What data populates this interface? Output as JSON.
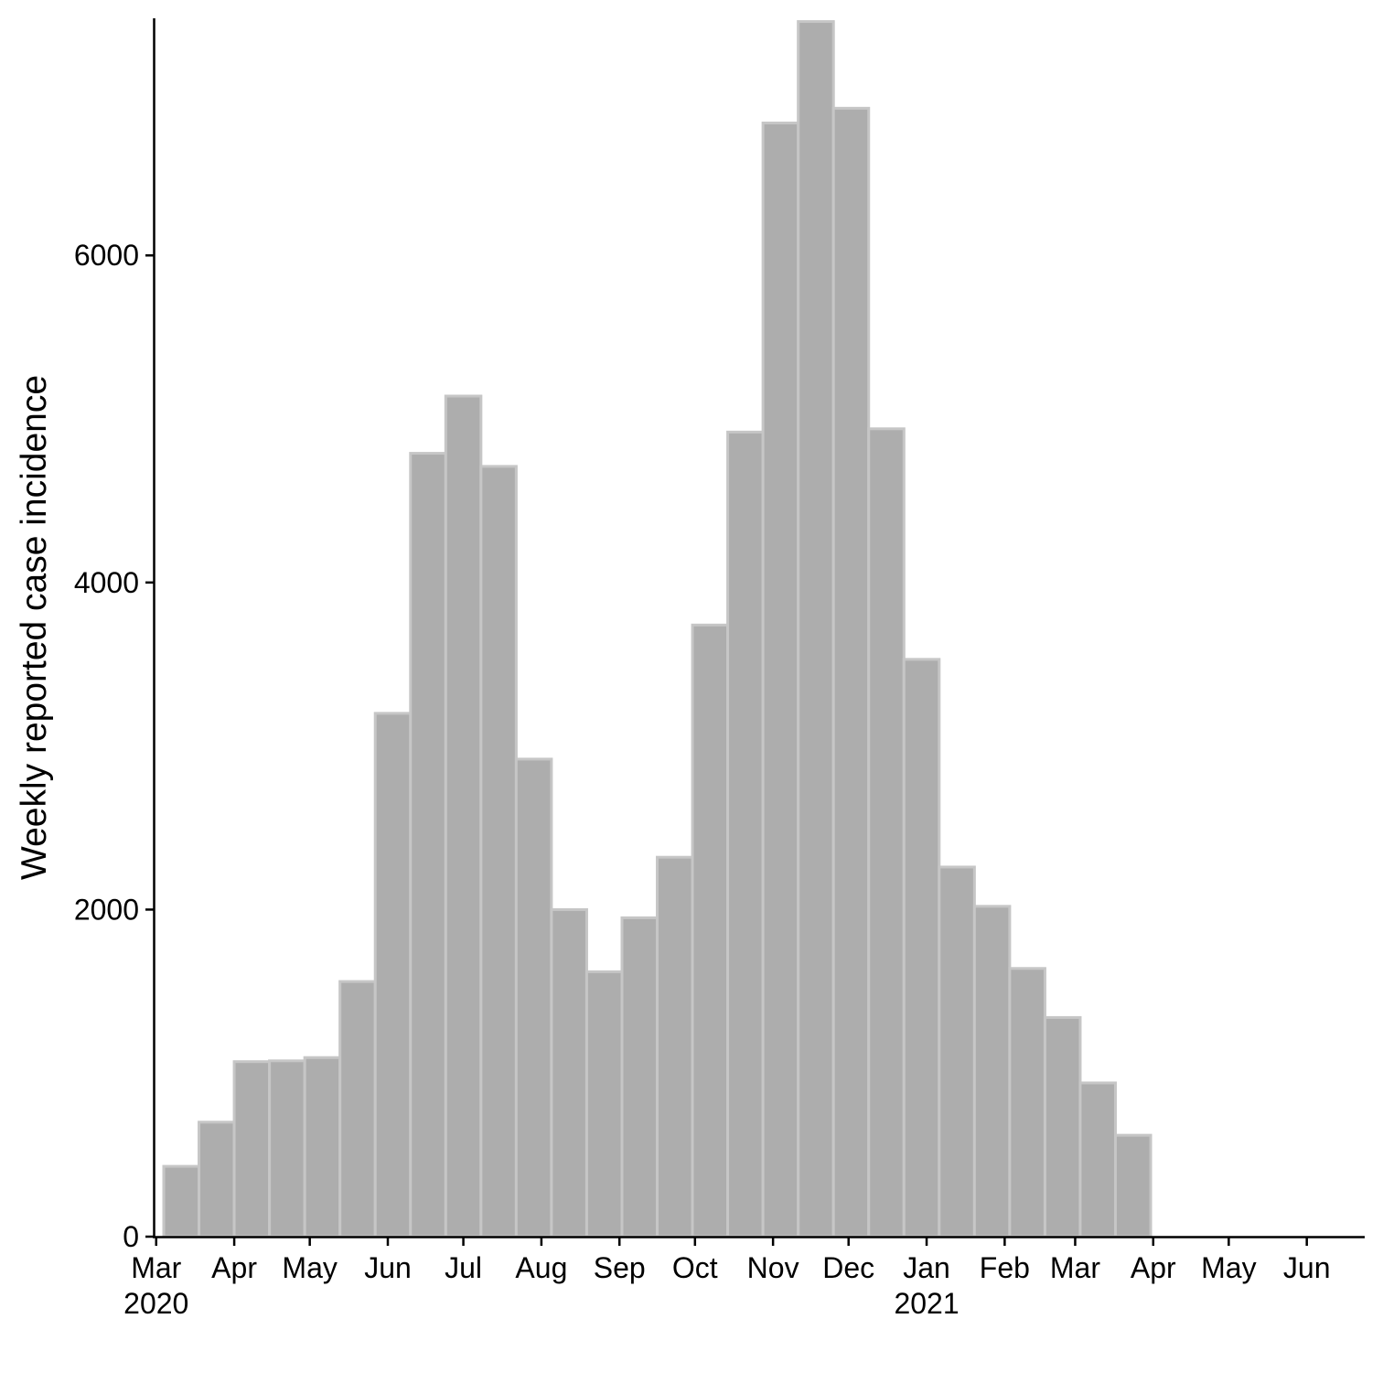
{
  "chart_data": {
    "type": "bar",
    "ylabel": "Weekly reported case incidence",
    "xlabel": "",
    "ylim": [
      0,
      7450
    ],
    "xlim": [
      "2020-02-29",
      "2021-06-24"
    ],
    "grid": false,
    "colors": {
      "bar_fill": "#adadad",
      "bar_stroke": "#c6c6c6",
      "axis": "#000000"
    },
    "y_ticks": [
      {
        "value": 0,
        "label": "0"
      },
      {
        "value": 2000,
        "label": "2000"
      },
      {
        "value": 4000,
        "label": "4000"
      },
      {
        "value": 6000,
        "label": "6000"
      }
    ],
    "x_ticks": [
      {
        "date": "2020-03-01",
        "label": "Mar",
        "sublabel": "2020"
      },
      {
        "date": "2020-04-01",
        "label": "Apr"
      },
      {
        "date": "2020-05-01",
        "label": "May"
      },
      {
        "date": "2020-06-01",
        "label": "Jun"
      },
      {
        "date": "2020-07-01",
        "label": "Jul"
      },
      {
        "date": "2020-08-01",
        "label": "Aug"
      },
      {
        "date": "2020-09-01",
        "label": "Sep"
      },
      {
        "date": "2020-10-01",
        "label": "Oct"
      },
      {
        "date": "2020-11-01",
        "label": "Nov"
      },
      {
        "date": "2020-12-01",
        "label": "Dec"
      },
      {
        "date": "2021-01-01",
        "label": "Jan",
        "sublabel": "2021"
      },
      {
        "date": "2021-02-01",
        "label": "Feb"
      },
      {
        "date": "2021-03-01",
        "label": "Mar"
      },
      {
        "date": "2021-04-01",
        "label": "Apr"
      },
      {
        "date": "2021-05-01",
        "label": "May"
      },
      {
        "date": "2021-06-01",
        "label": "Jun"
      }
    ],
    "bin_start": "2020-03-04",
    "bin_days": 14,
    "values": [
      430,
      700,
      1070,
      1075,
      1095,
      1560,
      3200,
      4790,
      5140,
      4710,
      2920,
      2000,
      1620,
      1950,
      2320,
      3740,
      4920,
      6810,
      7430,
      6900,
      4940,
      3530,
      2260,
      2020,
      1640,
      1340,
      940,
      620
    ]
  }
}
